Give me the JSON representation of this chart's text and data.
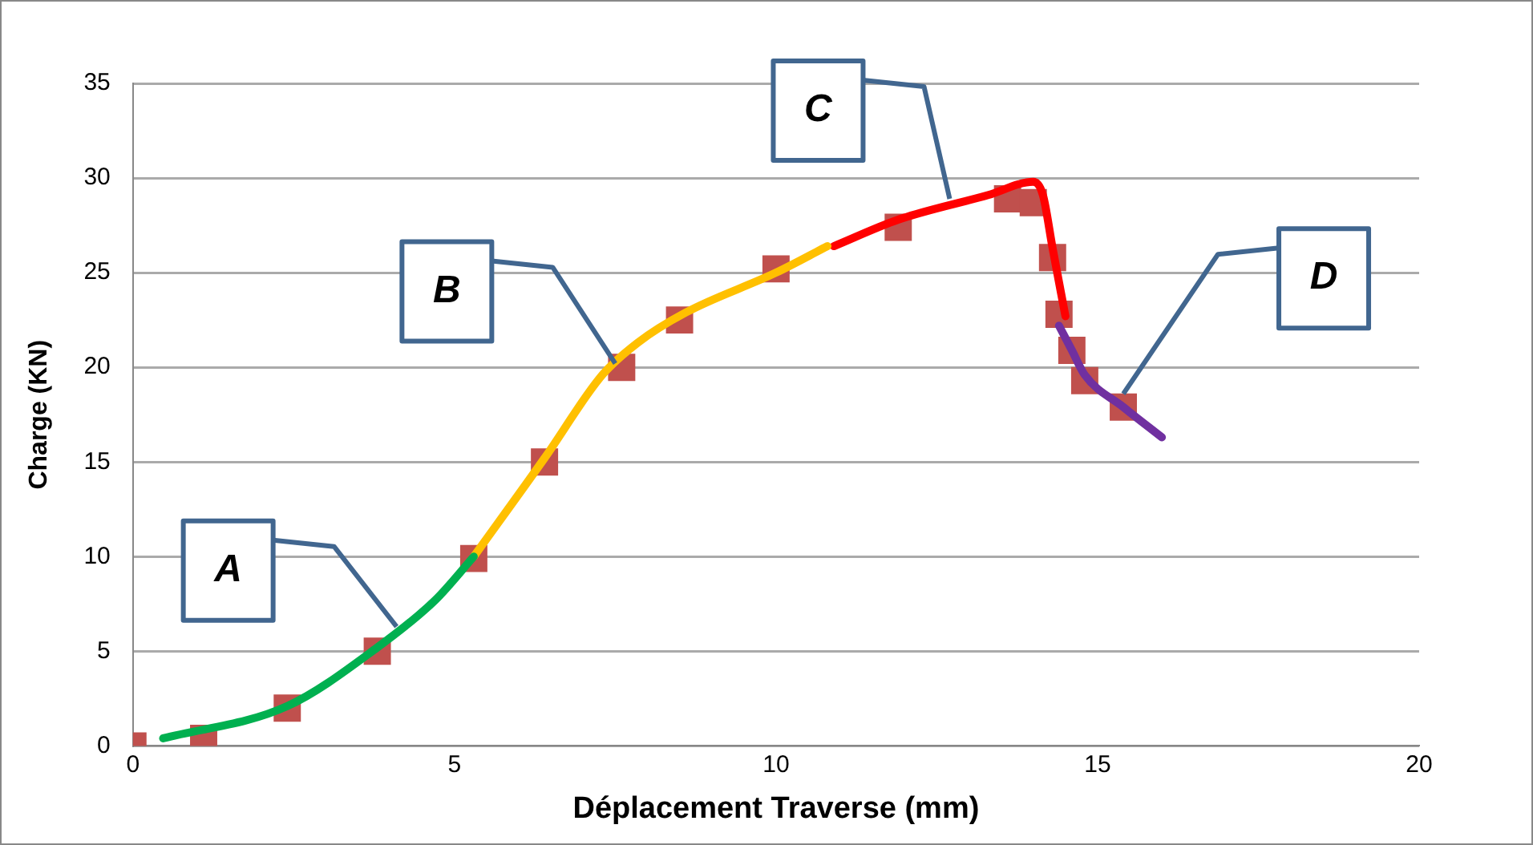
{
  "chart_data": {
    "type": "line",
    "xlabel": "Déplacement Traverse (mm)",
    "ylabel": "Charge (KN)",
    "xlim": [
      0,
      20
    ],
    "xticks": [
      0,
      5,
      10,
      15,
      20
    ],
    "ylim": [
      0,
      35
    ],
    "yticks": [
      0,
      5,
      10,
      15,
      20,
      25,
      30,
      35
    ],
    "grid": "y",
    "legend": false,
    "series": [
      {
        "marker": "none",
        "color": "#00b050",
        "x": [
          0.47,
          2.4,
          3.8,
          4.7,
          5.3
        ],
        "values": [
          0.4,
          2.1,
          5.2,
          7.7,
          10
        ]
      },
      {
        "marker": "none",
        "color": "#ffc000",
        "x": [
          5.3,
          6.4,
          7.3,
          7.85,
          8.6,
          10,
          10.8
        ],
        "values": [
          10,
          15.2,
          19.6,
          21.3,
          22.9,
          25,
          26.4
        ]
      },
      {
        "marker": "none",
        "color": "#ff0000",
        "x": [
          10.9,
          11.9,
          13.3,
          14.0,
          14.15,
          14.3,
          14.5
        ],
        "values": [
          26.4,
          27.8,
          29.1,
          29.8,
          29.1,
          26.3,
          22.7
        ]
      },
      {
        "marker": "none",
        "color": "#7030a0",
        "x": [
          14.4,
          14.6,
          14.8,
          15.4,
          16.0
        ],
        "values": [
          22.2,
          20.9,
          19.6,
          17.9,
          16.3
        ]
      },
      {
        "type": "scatter",
        "marker": "square",
        "color": "#c0504d",
        "x": [
          0,
          1.1,
          2.4,
          3.8,
          5.3,
          6.4,
          7.6,
          8.5,
          10,
          11.9,
          13.6,
          14,
          14.3,
          14.4,
          14.6,
          14.8,
          15.4
        ],
        "values": [
          0,
          0.4,
          2,
          5,
          9.9,
          15,
          20,
          22.5,
          25.2,
          27.4,
          28.9,
          28.7,
          25.8,
          22.8,
          20.9,
          19.3,
          17.9
        ]
      }
    ],
    "annotations": [
      {
        "text": "A",
        "x": 4.1,
        "y": 6.3
      },
      {
        "text": "B",
        "x": 7.5,
        "y": 20.2
      },
      {
        "text": "C",
        "x": 12.7,
        "y": 28.9
      },
      {
        "text": "D",
        "x": 15.4,
        "y": 18.6
      }
    ]
  }
}
